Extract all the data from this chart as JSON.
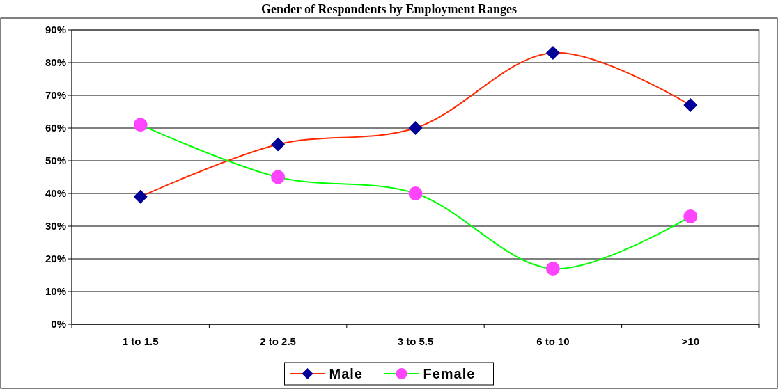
{
  "chart_data": {
    "type": "line",
    "title": "Gender of Respondents by Employment Ranges",
    "categories": [
      "1 to 1.5",
      "2 to 2.5",
      "3 to 5.5",
      "6 to 10",
      ">10"
    ],
    "series": [
      {
        "name": "Male",
        "color": "#ff2a00",
        "values": [
          39,
          55,
          60,
          83,
          67
        ],
        "marker": "diamond"
      },
      {
        "name": "Female",
        "color": "#00ff00",
        "values": [
          61,
          45,
          40,
          17,
          33
        ],
        "marker": "circle"
      }
    ],
    "ylim": [
      0,
      90
    ],
    "yticks": [
      {
        "value": 0,
        "label": "0%"
      },
      {
        "value": 10,
        "label": "10%"
      },
      {
        "value": 20,
        "label": "20%"
      },
      {
        "value": 30,
        "label": "30%"
      },
      {
        "value": 40,
        "label": "40%"
      },
      {
        "value": 50,
        "label": "50%"
      },
      {
        "value": 60,
        "label": "60%"
      },
      {
        "value": 70,
        "label": "70%"
      },
      {
        "value": 80,
        "label": "80%"
      },
      {
        "value": 90,
        "label": "90%"
      }
    ],
    "grid": "y",
    "legend": "bottom",
    "line_style": "solid"
  }
}
